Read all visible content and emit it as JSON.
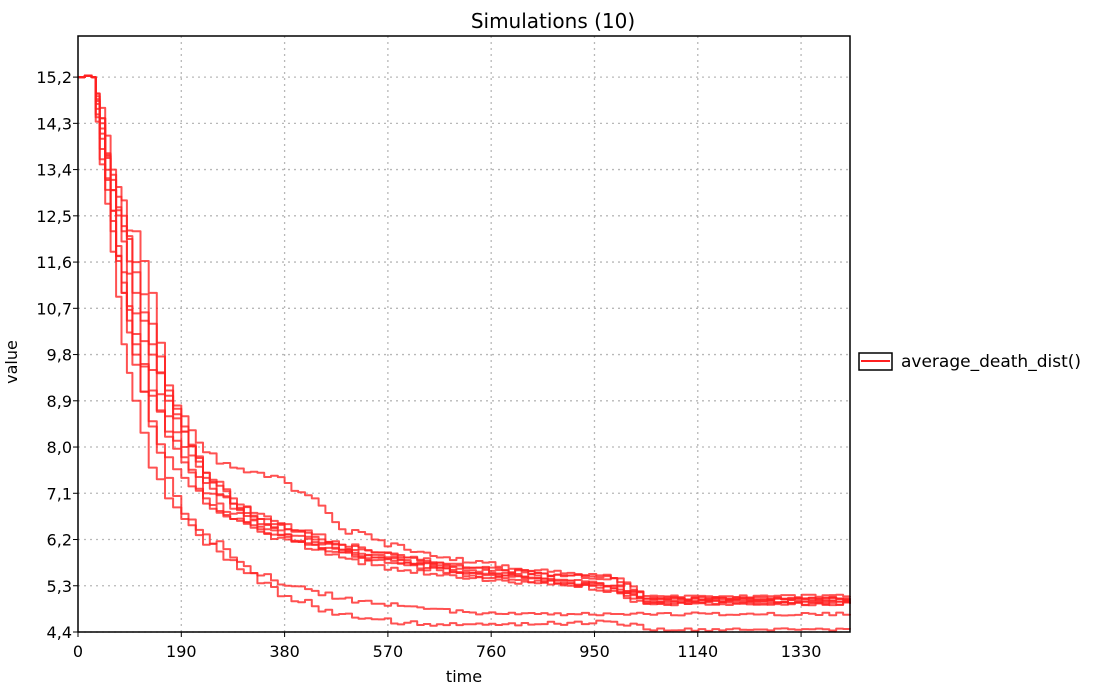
{
  "chart_data": {
    "type": "line",
    "title": "Simulations (10)",
    "xlabel": "time",
    "ylabel": "value",
    "xlim": [
      0,
      1420
    ],
    "ylim": [
      4.4,
      16.0
    ],
    "x_ticks": [
      0,
      190,
      380,
      570,
      760,
      950,
      1140,
      1330
    ],
    "y_ticks": [
      "15,2",
      "14,3",
      "13,4",
      "12,5",
      "11,6",
      "10,7",
      "9,8",
      "8,9",
      "8,0",
      "7,1",
      "6,2",
      "5,3",
      "4,4"
    ],
    "y_tick_values": [
      15.2,
      14.3,
      13.4,
      12.5,
      11.6,
      10.7,
      9.8,
      8.9,
      8.0,
      7.1,
      6.2,
      5.3,
      4.4
    ],
    "grid": true,
    "legend": {
      "position": "right",
      "entries": [
        "average_death_dist()"
      ]
    },
    "line_color": "#ff2020",
    "series": [
      {
        "x": [
          0,
          25,
          40,
          60,
          80,
          100,
          130,
          160,
          190,
          230,
          280,
          330,
          380,
          430,
          480,
          540,
          600,
          660,
          720,
          780,
          840,
          900,
          980,
          1040,
          1420
        ],
        "y": [
          15.2,
          15.2,
          14.2,
          13.2,
          12.2,
          11.0,
          9.8,
          8.9,
          8.3,
          7.4,
          6.9,
          6.6,
          6.4,
          6.2,
          6.0,
          5.85,
          5.75,
          5.65,
          5.55,
          5.5,
          5.45,
          5.4,
          5.3,
          5.05,
          5.05
        ]
      },
      {
        "x": [
          0,
          25,
          40,
          60,
          80,
          100,
          130,
          160,
          190,
          230,
          280,
          330,
          380,
          430,
          480,
          540,
          600,
          660,
          720,
          780,
          840,
          900,
          980,
          1040,
          1420
        ],
        "y": [
          15.2,
          15.2,
          14.4,
          13.0,
          12.0,
          10.6,
          9.5,
          8.6,
          8.0,
          7.3,
          6.8,
          6.5,
          6.3,
          6.1,
          5.95,
          5.8,
          5.7,
          5.6,
          5.5,
          5.45,
          5.4,
          5.35,
          5.3,
          5.0,
          5.0
        ]
      },
      {
        "x": [
          0,
          25,
          40,
          60,
          80,
          100,
          130,
          160,
          190,
          230,
          280,
          330,
          380,
          430,
          480,
          540,
          600,
          660,
          720,
          780,
          840,
          900,
          980,
          1040,
          1420
        ],
        "y": [
          15.2,
          15.2,
          13.6,
          12.6,
          11.4,
          10.2,
          9.1,
          8.2,
          7.7,
          7.0,
          6.6,
          6.35,
          6.2,
          6.0,
          5.85,
          5.7,
          5.6,
          5.5,
          5.45,
          5.4,
          5.35,
          5.3,
          5.2,
          4.95,
          4.95
        ]
      },
      {
        "x": [
          0,
          25,
          40,
          60,
          80,
          100,
          130,
          160,
          190,
          230,
          280,
          330,
          380,
          430,
          480,
          540,
          600,
          660,
          720,
          780,
          840,
          900,
          980,
          1040,
          1420
        ],
        "y": [
          15.2,
          15.2,
          14.0,
          13.3,
          12.8,
          11.4,
          10.0,
          9.0,
          8.4,
          7.5,
          7.0,
          6.7,
          6.5,
          6.3,
          6.1,
          5.95,
          5.85,
          5.75,
          5.65,
          5.6,
          5.55,
          5.5,
          5.45,
          5.1,
          5.1
        ]
      },
      {
        "x": [
          0,
          25,
          40,
          60,
          80,
          100,
          130,
          160,
          190,
          230,
          280,
          330,
          380,
          430,
          480,
          540,
          600,
          660,
          720,
          780,
          840,
          900,
          980,
          1040,
          1420
        ],
        "y": [
          15.2,
          15.2,
          14.1,
          12.4,
          11.2,
          10.0,
          9.0,
          8.3,
          7.8,
          7.1,
          6.7,
          6.45,
          6.3,
          6.15,
          6.0,
          5.9,
          5.8,
          5.7,
          5.6,
          5.55,
          5.5,
          5.4,
          5.25,
          4.98,
          4.98
        ]
      },
      {
        "x": [
          0,
          25,
          40,
          60,
          80,
          100,
          130,
          160,
          190,
          230,
          280,
          330,
          380,
          430,
          480,
          540,
          600,
          660,
          720,
          780,
          840,
          900,
          980,
          1040,
          1420
        ],
        "y": [
          15.2,
          15.2,
          14.4,
          13.0,
          12.3,
          12.2,
          11.0,
          9.2,
          8.6,
          7.9,
          7.6,
          7.5,
          7.3,
          7.0,
          6.4,
          6.2,
          6.0,
          5.85,
          5.75,
          5.7,
          5.6,
          5.55,
          5.45,
          5.05,
          5.05
        ]
      },
      {
        "x": [
          0,
          25,
          40,
          60,
          80,
          100,
          130,
          160,
          190,
          230,
          280,
          330,
          380,
          430,
          480,
          540,
          600,
          660,
          720,
          780,
          840,
          900,
          980,
          1040,
          1420
        ],
        "y": [
          15.2,
          15.2,
          14.6,
          13.4,
          12.5,
          11.6,
          10.4,
          9.1,
          8.3,
          7.5,
          6.9,
          6.6,
          6.4,
          6.25,
          6.1,
          5.95,
          5.85,
          5.75,
          5.65,
          5.6,
          5.55,
          5.5,
          5.45,
          5.05,
          5.05
        ]
      },
      {
        "x": [
          0,
          25,
          40,
          60,
          80,
          100,
          130,
          160,
          190,
          230,
          280,
          330,
          380,
          430,
          480,
          540,
          600,
          660,
          720,
          780,
          840,
          900,
          980,
          1040,
          1420
        ],
        "y": [
          15.2,
          15.2,
          13.8,
          12.2,
          11.0,
          9.8,
          8.5,
          7.8,
          7.4,
          6.9,
          6.6,
          6.4,
          6.25,
          6.1,
          5.95,
          5.85,
          5.75,
          5.65,
          5.55,
          5.5,
          5.45,
          5.35,
          5.25,
          4.95,
          4.95
        ]
      },
      {
        "x": [
          0,
          25,
          40,
          60,
          80,
          100,
          130,
          160,
          190,
          230,
          280,
          330,
          380,
          430,
          480,
          540,
          600,
          660,
          720,
          780,
          840,
          900,
          980,
          1040,
          1420
        ],
        "y": [
          15.2,
          15.2,
          14.3,
          12.6,
          11.0,
          9.6,
          8.4,
          7.4,
          6.7,
          6.3,
          5.85,
          5.5,
          5.3,
          5.2,
          5.05,
          4.95,
          4.9,
          4.85,
          4.78,
          4.75,
          4.75,
          4.75,
          4.75,
          4.75,
          4.75
        ]
      },
      {
        "x": [
          0,
          25,
          40,
          60,
          80,
          100,
          130,
          160,
          190,
          230,
          280,
          330,
          380,
          430,
          480,
          540,
          600,
          660,
          720,
          780,
          840,
          900,
          980,
          1040,
          1420
        ],
        "y": [
          15.2,
          15.2,
          13.5,
          11.8,
          10.0,
          8.9,
          7.6,
          7.0,
          6.6,
          6.1,
          5.8,
          5.35,
          5.1,
          4.9,
          4.75,
          4.65,
          4.58,
          4.55,
          4.55,
          4.55,
          4.55,
          4.58,
          4.6,
          4.45,
          4.45
        ]
      }
    ]
  }
}
